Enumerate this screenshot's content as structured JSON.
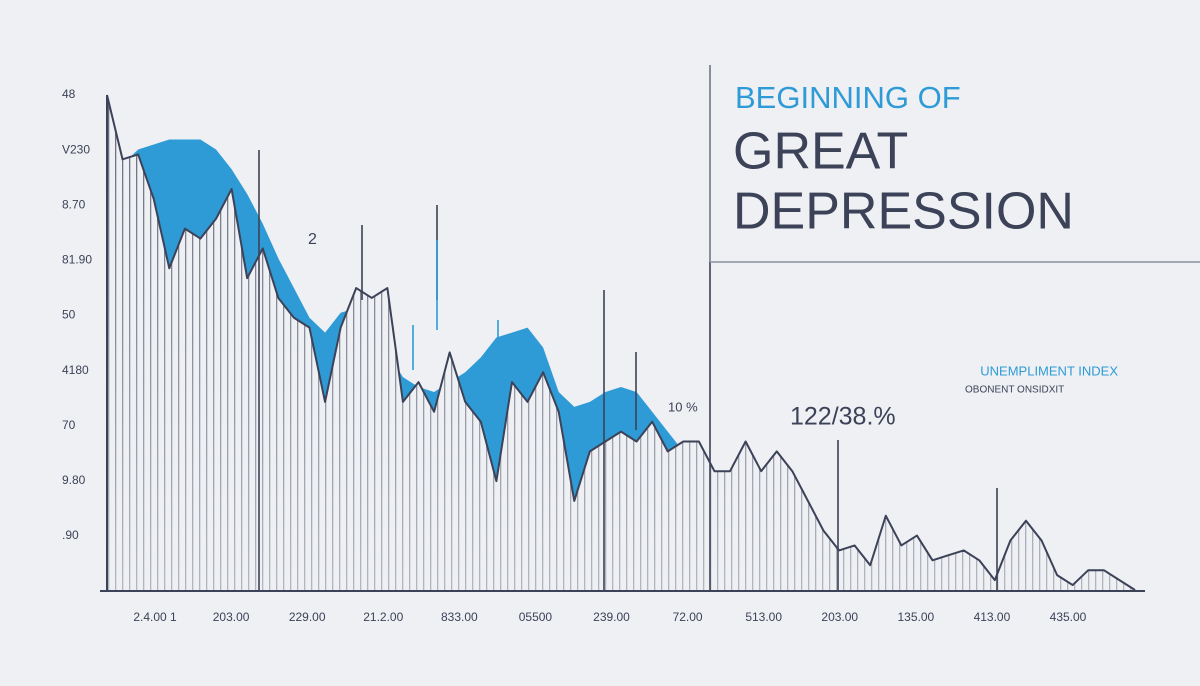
{
  "chart_data": {
    "type": "line",
    "title": [
      "BEGINNING OF",
      "GREAT",
      "DEPRESSION"
    ],
    "annotations": [
      "OBONENT ONSIDXIT",
      "122/38.%",
      "10 %",
      "2"
    ],
    "y_labels": [
      "48",
      "V230",
      "8.70",
      "81.90",
      "50",
      "4180",
      "70",
      "9.80",
      ".90"
    ],
    "x_labels": [
      "2.4.00 1",
      "203.00",
      "229.00",
      "21.2.00",
      "833.00",
      "05500",
      "239.00",
      "72.00",
      "513.00",
      "203.00",
      "135.00",
      "413.00",
      "435.00"
    ],
    "ylim": [
      0,
      100
    ],
    "series": [
      {
        "name": "UNEMPLIMENT INDEX",
        "color": "#3c4257",
        "values": [
          100,
          87,
          88,
          79,
          65,
          73,
          71,
          75,
          81,
          63,
          69,
          59,
          55,
          53,
          38,
          53,
          61,
          59,
          61,
          38,
          42,
          36,
          48,
          38,
          34,
          22,
          42,
          38,
          44,
          36,
          18,
          28,
          30,
          32,
          30,
          34,
          28,
          30,
          30,
          24,
          24,
          30,
          24,
          28,
          24,
          18,
          12,
          8,
          9,
          5,
          15,
          9,
          11,
          6,
          7,
          8,
          6,
          2,
          10,
          14,
          10,
          3,
          1,
          4,
          4,
          2,
          0
        ]
      },
      {
        "color": "#2e9bd6",
        "values": [
          87,
          86,
          89,
          90,
          91,
          91,
          91,
          89,
          85,
          80,
          74,
          67,
          61,
          55,
          52,
          56,
          57,
          55,
          48,
          43,
          41,
          40,
          42,
          44,
          47,
          51,
          52,
          53,
          49,
          40,
          37,
          38,
          40,
          41,
          40,
          36,
          32,
          28,
          26,
          24,
          22,
          null,
          null,
          null,
          null,
          null,
          null,
          null,
          null,
          null,
          null,
          null,
          null,
          null,
          null,
          null,
          null,
          null,
          null,
          null,
          null,
          null,
          null,
          null,
          null,
          null,
          null
        ]
      }
    ]
  }
}
